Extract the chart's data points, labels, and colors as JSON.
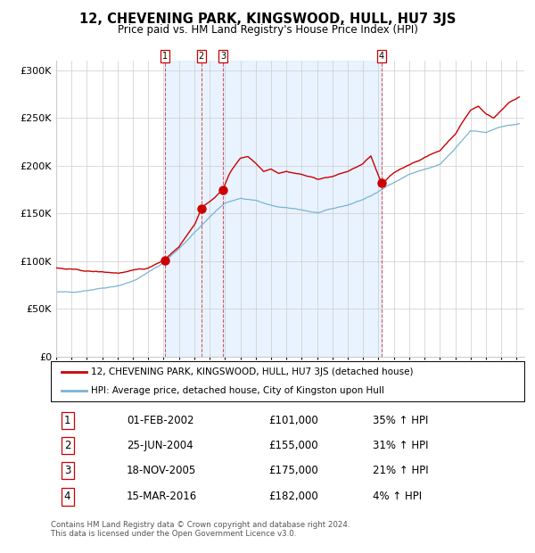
{
  "title": "12, CHEVENING PARK, KINGSWOOD, HULL, HU7 3JS",
  "subtitle": "Price paid vs. HM Land Registry's House Price Index (HPI)",
  "legend_property": "12, CHEVENING PARK, KINGSWOOD, HULL, HU7 3JS (detached house)",
  "legend_hpi": "HPI: Average price, detached house, City of Kingston upon Hull",
  "transactions": [
    {
      "num": "1",
      "date_yr": 2002.083,
      "price": 101000,
      "hpi_pct": "35% ↑ HPI",
      "date_str": "01-FEB-2002"
    },
    {
      "num": "2",
      "date_yr": 2004.458,
      "price": 155000,
      "hpi_pct": "31% ↑ HPI",
      "date_str": "25-JUN-2004"
    },
    {
      "num": "3",
      "date_yr": 2005.875,
      "price": 175000,
      "hpi_pct": "21% ↑ HPI",
      "date_str": "18-NOV-2005"
    },
    {
      "num": "4",
      "date_yr": 2016.208,
      "price": 182000,
      "hpi_pct": "4% ↑ HPI",
      "date_str": "15-MAR-2016"
    }
  ],
  "row_data": [
    [
      "1",
      "01-FEB-2002",
      "£101,000",
      "35% ↑ HPI"
    ],
    [
      "2",
      "25-JUN-2004",
      "£155,000",
      "31% ↑ HPI"
    ],
    [
      "3",
      "18-NOV-2005",
      "£175,000",
      "21% ↑ HPI"
    ],
    [
      "4",
      "15-MAR-2016",
      "£182,000",
      "4% ↑ HPI"
    ]
  ],
  "property_color": "#cc0000",
  "hpi_line_color": "#7ab3d4",
  "bg_shade_color": "#ddeeff",
  "ylim": [
    0,
    310000
  ],
  "yticks": [
    0,
    50000,
    100000,
    150000,
    200000,
    250000,
    300000
  ],
  "xlim": [
    1995,
    2025.5
  ],
  "xticks": [
    1995,
    1996,
    1997,
    1998,
    1999,
    2000,
    2001,
    2002,
    2003,
    2004,
    2005,
    2006,
    2007,
    2008,
    2009,
    2010,
    2011,
    2012,
    2013,
    2014,
    2015,
    2016,
    2017,
    2018,
    2019,
    2020,
    2021,
    2022,
    2023,
    2024,
    2025
  ],
  "grid_color": "#cccccc",
  "footer": "Contains HM Land Registry data © Crown copyright and database right 2024.\nThis data is licensed under the Open Government Licence v3.0."
}
